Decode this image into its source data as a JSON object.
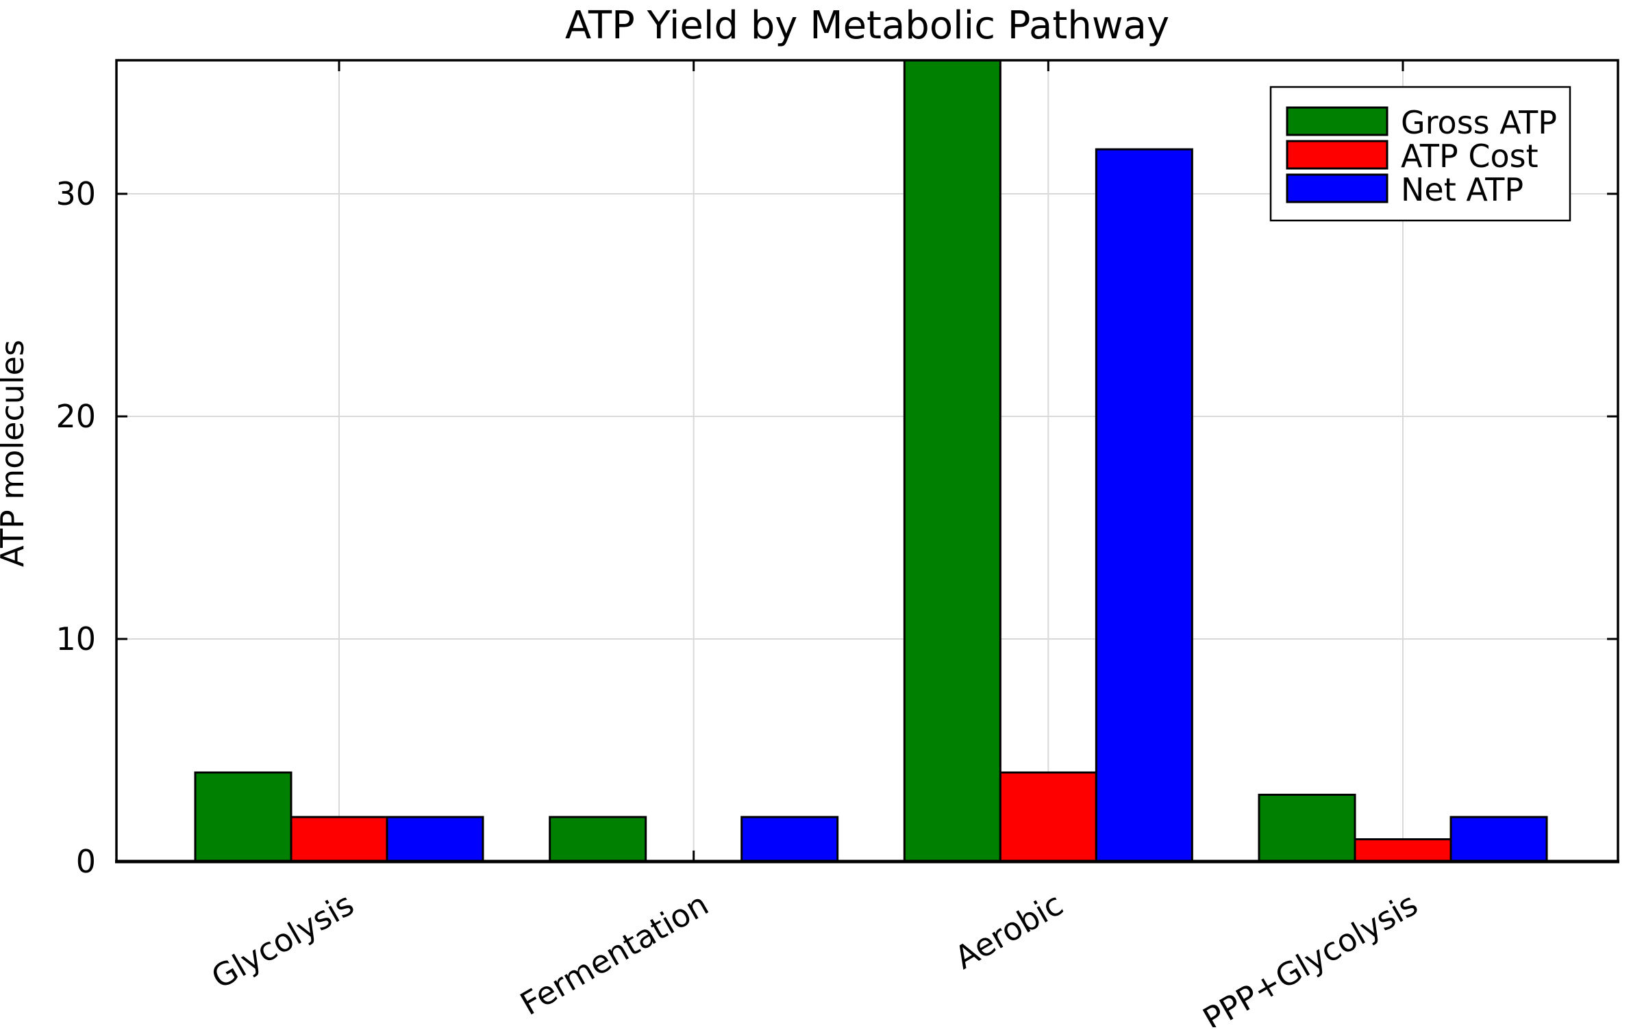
{
  "chart_data": {
    "type": "bar",
    "title": "ATP Yield by Metabolic Pathway",
    "xlabel": "",
    "ylabel": "ATP molecules",
    "categories": [
      "Glycolysis",
      "Fermentation",
      "Aerobic",
      "PPP+Glycolysis"
    ],
    "series": [
      {
        "name": "Gross ATP",
        "color": "#008000",
        "values": [
          4,
          2,
          36,
          3
        ]
      },
      {
        "name": "ATP Cost",
        "color": "#ff0000",
        "values": [
          2,
          0,
          4,
          1
        ]
      },
      {
        "name": "Net ATP",
        "color": "#0000ff",
        "values": [
          2,
          2,
          32,
          2
        ]
      }
    ],
    "ylim": [
      0,
      36
    ],
    "yticks": [
      0,
      10,
      20,
      30
    ],
    "grid": true,
    "legend_position": "upper right",
    "bar_edge_color": "#000000",
    "x_tick_rotation_deg": 30
  }
}
